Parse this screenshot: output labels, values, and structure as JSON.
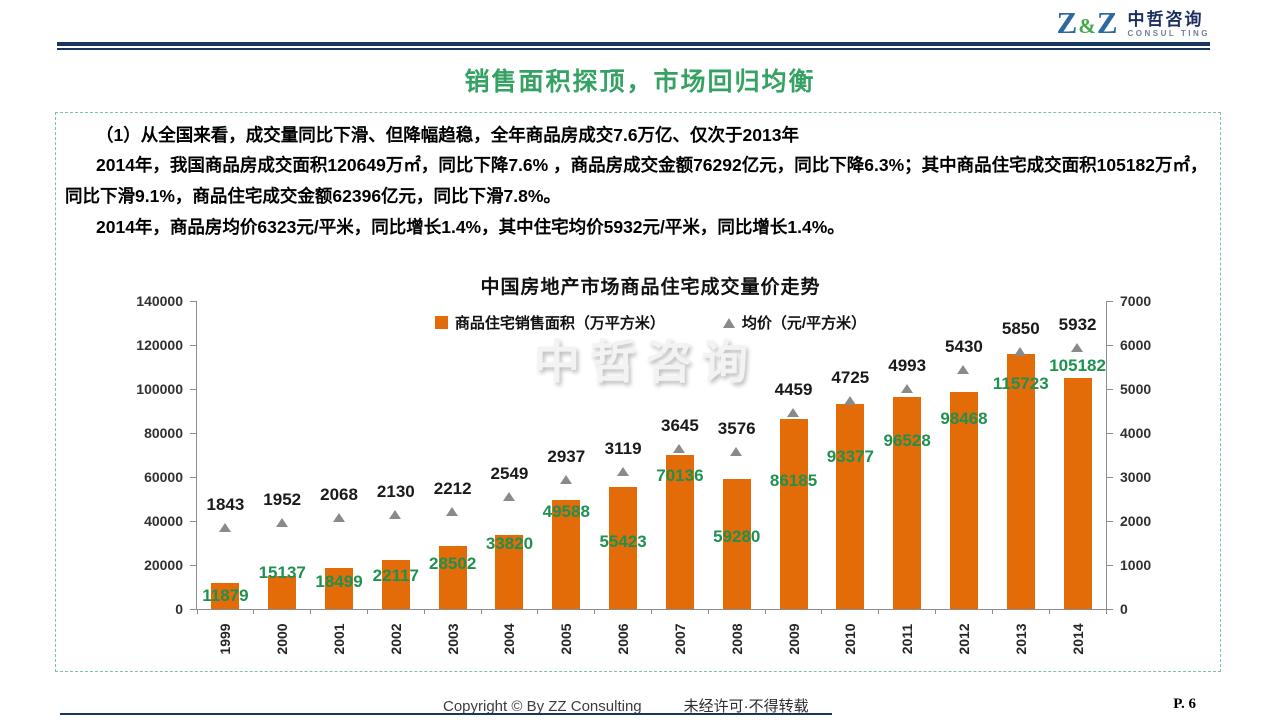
{
  "header": {
    "logo": {
      "z1": "Z",
      "amp": "&",
      "z2": "Z",
      "name_cn": "中哲咨询",
      "name_en": "CONSUL TING"
    },
    "title": "销售面积探顶，市场回归均衡"
  },
  "body": {
    "heading": "（1）从全国来看，成交量同比下滑、但降幅趋稳，全年商品房成交7.6万亿、仅次于2013年",
    "para1": "2014年，我国商品房成交面积120649万㎡，同比下降7.6% ，商品房成交金额76292亿元，同比下降6.3%；其中商品住宅成交面积105182万㎡，同比下滑9.1%，商品住宅成交金额62396亿元，同比下滑7.8%。",
    "para2": "2014年，商品房均价6323元/平米，同比增长1.4%，其中住宅均价5932元/平米，同比增长1.4%。"
  },
  "chart_data": {
    "type": "bar",
    "title": "中国房地产市场商品住宅成交量价走势",
    "watermark": "中哲咨询",
    "categories": [
      "1999",
      "2000",
      "2001",
      "2002",
      "2003",
      "2004",
      "2005",
      "2006",
      "2007",
      "2008",
      "2009",
      "2010",
      "2011",
      "2012",
      "2013",
      "2014"
    ],
    "series": [
      {
        "name": "商品住宅销售面积（万平方米）",
        "type": "bar",
        "axis": "left",
        "color": "#e36c09",
        "label_color": "#1e9150",
        "values": [
          11879,
          15137,
          18499,
          22117,
          28502,
          33820,
          49588,
          55423,
          70136,
          59280,
          86185,
          93377,
          96528,
          98468,
          115723,
          105182
        ]
      },
      {
        "name": "均价（元/平方米）",
        "type": "scatter",
        "marker": "triangle",
        "axis": "right",
        "color": "#8a8a8a",
        "label_color": "#1a1a1a",
        "values": [
          1843,
          1952,
          2068,
          2130,
          2212,
          2549,
          2937,
          3119,
          3645,
          3576,
          4459,
          4725,
          4993,
          5430,
          5850,
          5932
        ]
      }
    ],
    "left_axis": {
      "min": 0,
      "max": 140000,
      "step": 20000,
      "tick_labels": [
        "0",
        "20000",
        "40000",
        "60000",
        "80000",
        "100000",
        "120000",
        "140000"
      ]
    },
    "right_axis": {
      "min": 0,
      "max": 7000,
      "step": 1000,
      "tick_labels": [
        "0",
        "1000",
        "2000",
        "3000",
        "4000",
        "5000",
        "6000",
        "7000"
      ]
    },
    "legend_position": "top-center",
    "grid": false
  },
  "footer": {
    "copyright": "Copyright © By  ZZ Consulting",
    "notice": "未经许可·不得转载",
    "page": "P. 6"
  },
  "colors": {
    "accent_navy": "#17375e",
    "title_green": "#35a264",
    "bar_orange": "#e36c09",
    "value_green": "#1e9150",
    "marker_gray": "#8a8a8a",
    "dashed_border_green": "#7cc29e"
  }
}
